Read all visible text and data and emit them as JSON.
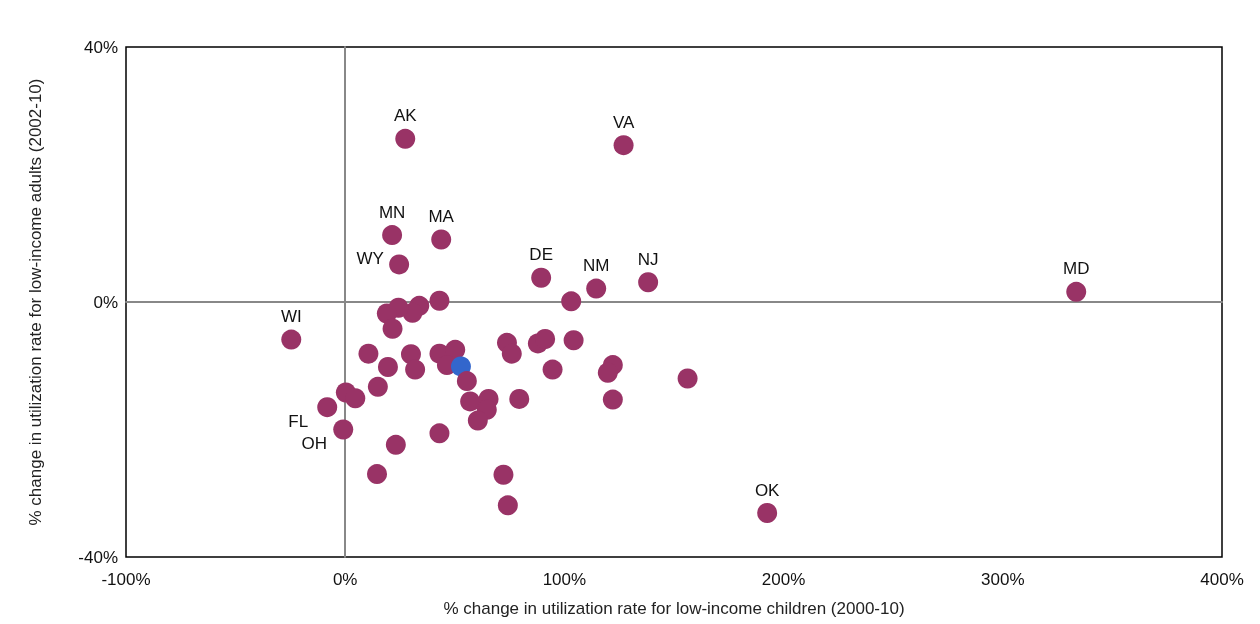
{
  "chart_data": {
    "type": "scatter",
    "xlabel": "% change in utilization rate for low-income children (2000-10)",
    "ylabel": "% change in utilization rate for low-income adults (2002-10)",
    "x": [
      27.4,
      127,
      21.4,
      43.8,
      24.6,
      89.4,
      114.5,
      138.2,
      333.5,
      -24.6,
      -8.2,
      -0.9,
      192.5,
      103.1,
      43.0,
      33.8,
      30.7,
      24.3,
      19.0,
      21.6,
      10.6,
      30.0,
      19.5,
      31.9,
      43.0,
      50.2,
      46.4,
      52.8,
      55.5,
      57.0,
      65.4,
      64.6,
      60.5,
      43.0,
      23.1,
      14.5,
      72.2,
      74.2,
      79.4,
      73.8,
      76.0,
      87.9,
      91.2,
      104.2,
      94.6,
      122.1,
      119.8,
      122.1,
      156.2,
      0.3,
      4.6,
      14.9
    ],
    "values": [
      25.6,
      24.6,
      10.5,
      9.8,
      5.9,
      3.8,
      2.1,
      3.1,
      1.6,
      -5.9,
      -16.5,
      -20,
      -33.1,
      0.1,
      0.2,
      -0.6,
      -1.7,
      -0.9,
      -1.8,
      -4.2,
      -8.1,
      -8.2,
      -10.2,
      -10.6,
      -8.1,
      -7.5,
      -9.9,
      -10.1,
      -12.4,
      -15.6,
      -15.2,
      -16.9,
      -18.6,
      -20.6,
      -22.4,
      -27.0,
      -27.1,
      -31.9,
      -15.2,
      -6.4,
      -8.1,
      -6.5,
      -5.8,
      -6.0,
      -10.6,
      -9.9,
      -11.1,
      -15.3,
      -12.0,
      -14.2,
      -15.1,
      -13.3
    ],
    "colors": [
      "#993366",
      "#993366",
      "#993366",
      "#993366",
      "#993366",
      "#993366",
      "#993366",
      "#993366",
      "#993366",
      "#993366",
      "#993366",
      "#993366",
      "#993366",
      "#993366",
      "#993366",
      "#993366",
      "#993366",
      "#993366",
      "#993366",
      "#993366",
      "#993366",
      "#993366",
      "#993366",
      "#993366",
      "#993366",
      "#993366",
      "#993366",
      "#3366cc",
      "#993366",
      "#993366",
      "#993366",
      "#993366",
      "#993366",
      "#993366",
      "#993366",
      "#993366",
      "#993366",
      "#993366",
      "#993366",
      "#993366",
      "#993366",
      "#993366",
      "#993366",
      "#993366",
      "#993366",
      "#993366",
      "#993366",
      "#993366",
      "#993366",
      "#993366",
      "#993366",
      "#993366"
    ],
    "xlim": [
      -100,
      400
    ],
    "xticks": [
      {
        "value": -100,
        "label": "-100%"
      },
      {
        "value": 0,
        "label": "0%"
      },
      {
        "value": 100,
        "label": "100%"
      },
      {
        "value": 200,
        "label": "200%"
      },
      {
        "value": 300,
        "label": "300%"
      },
      {
        "value": 400,
        "label": "400%"
      }
    ],
    "ylim": [
      -40,
      40
    ],
    "yticks": [
      {
        "value": -40,
        "label": "-40%"
      },
      {
        "value": 0,
        "label": "0%"
      },
      {
        "value": 40,
        "label": "40%"
      }
    ],
    "annotations": [
      {
        "text": "AK",
        "x": 27.4,
        "y": 25.6
      },
      {
        "text": "VA",
        "x": 127,
        "y": 24.6
      },
      {
        "text": "MN",
        "x": 21.4,
        "y": 10.5
      },
      {
        "text": "MA",
        "x": 43.8,
        "y": 9.8
      },
      {
        "text": "WY",
        "x": 24.6,
        "y": 5.9
      },
      {
        "text": "DE",
        "x": 89.4,
        "y": 3.8
      },
      {
        "text": "NM",
        "x": 114.5,
        "y": 2.1
      },
      {
        "text": "NJ",
        "x": 138.2,
        "y": 3.1
      },
      {
        "text": "MD",
        "x": 333.5,
        "y": 1.6
      },
      {
        "text": "WI",
        "x": -24.6,
        "y": -5.9
      },
      {
        "text": "FL",
        "x": -8.2,
        "y": -16.5
      },
      {
        "text": "OH",
        "x": -0.9,
        "y": -20
      },
      {
        "text": "OK",
        "x": 192.5,
        "y": -33.1
      }
    ],
    "marker": "circle"
  }
}
